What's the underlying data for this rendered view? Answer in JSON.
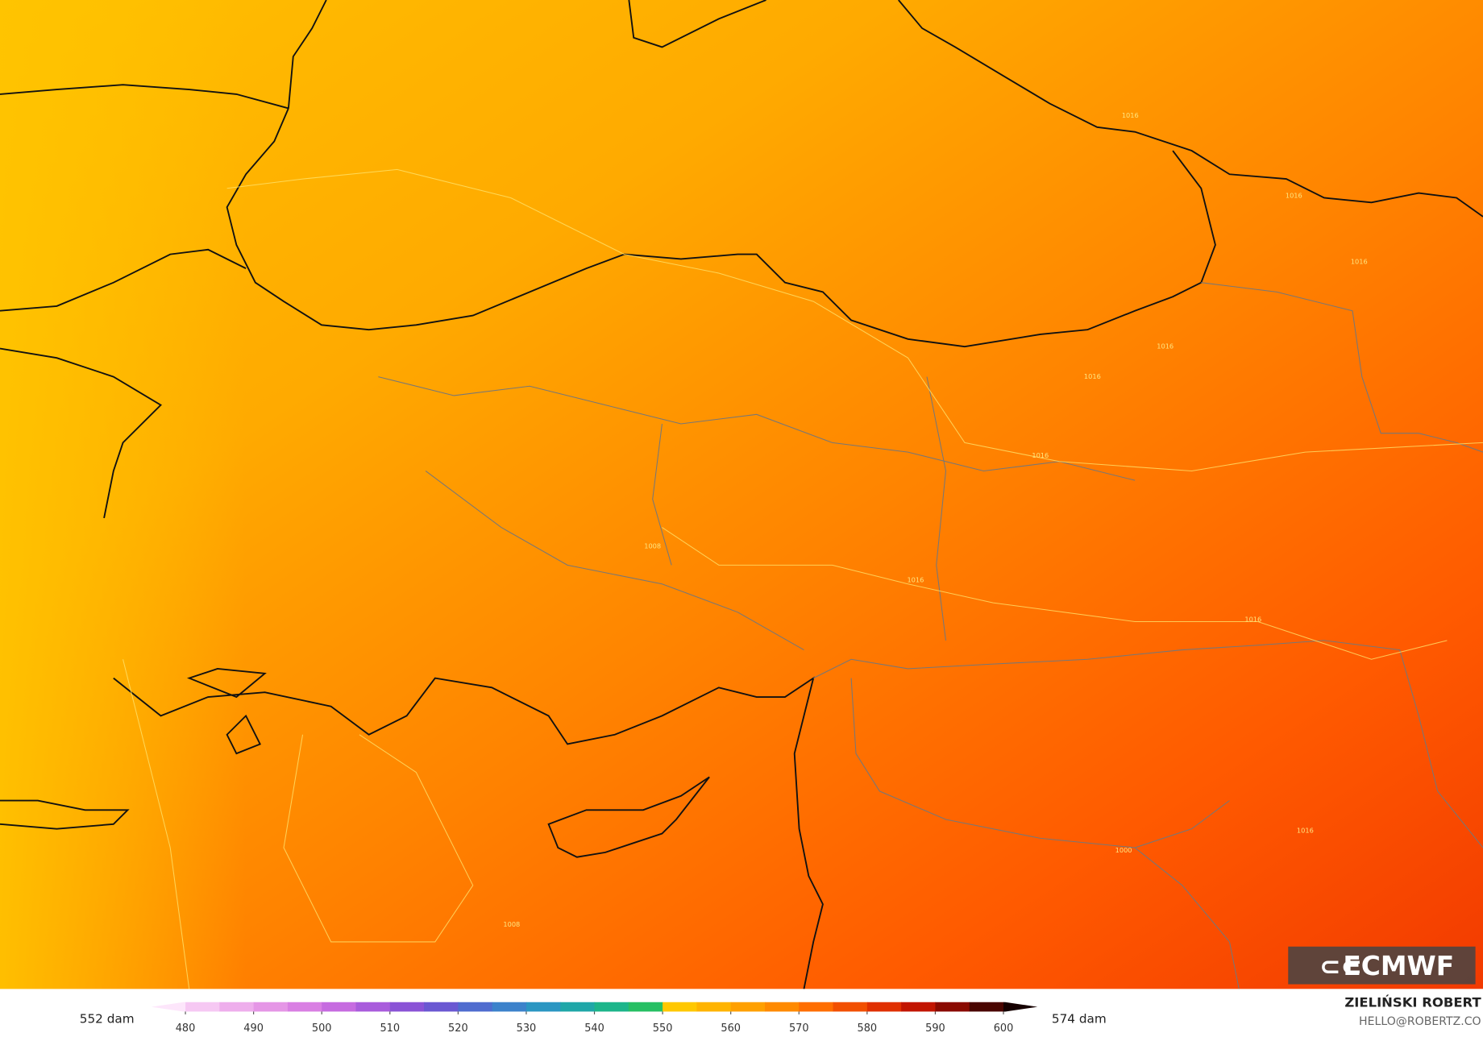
{
  "legend": {
    "left_label": "552 dam",
    "right_label": "574 dam",
    "ticks": [
      480,
      490,
      500,
      510,
      520,
      530,
      540,
      550,
      560,
      570,
      580,
      590,
      600
    ],
    "range": [
      475,
      605
    ],
    "colors": [
      "#fde6fb",
      "#f6c8f3",
      "#eeaeec",
      "#e596e6",
      "#d97fe3",
      "#c66be0",
      "#a95cdc",
      "#8a53d6",
      "#6a58d2",
      "#4f6ccf",
      "#3c82cb",
      "#2b96c2",
      "#1fa7a8",
      "#1cb58a",
      "#26bf63",
      "#ffc800",
      "#ffb400",
      "#ffa000",
      "#ff8a00",
      "#ff6e00",
      "#f25000",
      "#e03000",
      "#c21500",
      "#8a0a00",
      "#4a0500",
      "#150000"
    ]
  },
  "credit": {
    "author": "ZIELIŃSKI ROBERT",
    "email": "HELLO@ROBERTZ.CO"
  },
  "logo": "ECMWF",
  "contour_labels": [
    "1016",
    "1016",
    "1016",
    "1016",
    "1016",
    "1008",
    "1016",
    "1016",
    "1016",
    "1008",
    "1000",
    "1016"
  ]
}
